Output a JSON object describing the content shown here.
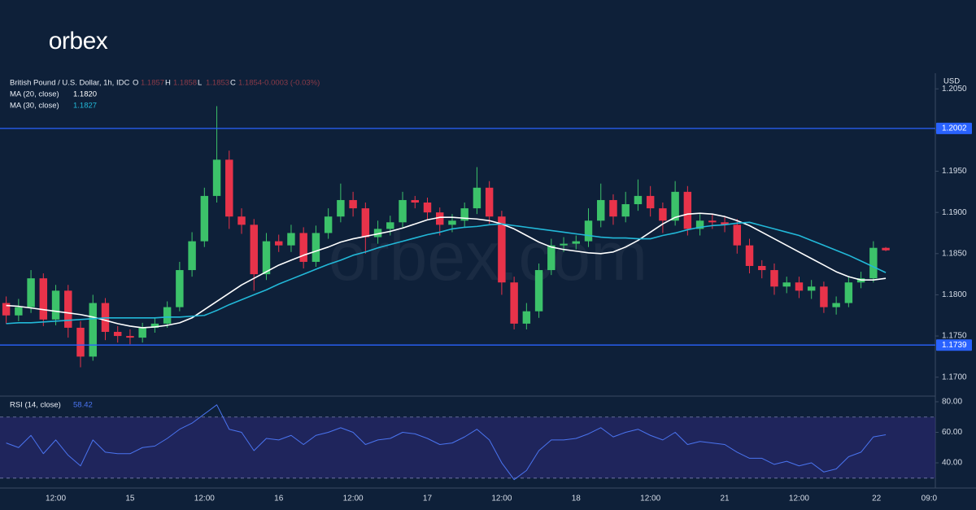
{
  "branding": {
    "logo": "orbex",
    "watermark": "orbex.com"
  },
  "header": {
    "symbol": "British Pound / U.S. Dollar, 1h, IDC",
    "o_key": "O",
    "o": "1.1857",
    "h_key": "H",
    "h": "1.1858",
    "l_key": "L",
    "l": "1.1853",
    "c_key": "C",
    "c": "1.1854",
    "change": "-0.0003 (-0.03%)",
    "ma20_value": "1.1820",
    "ma30_value": "1.1827",
    "rsi_value": "58.42",
    "currency": "USD"
  },
  "chart_data": [
    {
      "type": "candlestick",
      "up_color": "#3cc26a",
      "down_color": "#e8334a",
      "xlim": [
        -0.5,
        75
      ],
      "ylim": [
        1.1677,
        1.2069
      ],
      "yticks": [
        {
          "value": 1.17,
          "label": "1.1700"
        },
        {
          "value": 1.175,
          "label": "1.1750"
        },
        {
          "value": 1.18,
          "label": "1.1800"
        },
        {
          "value": 1.185,
          "label": "1.1850"
        },
        {
          "value": 1.19,
          "label": "1.1900"
        },
        {
          "value": 1.195,
          "label": "1.1950"
        },
        {
          "value": 1.2,
          "label": "1.2000"
        },
        {
          "value": 1.205,
          "label": "1.2050"
        }
      ],
      "grid": false,
      "levels": [
        {
          "value": 1.2002,
          "color": "#2962ff"
        },
        {
          "value": 1.1739,
          "color": "#2962ff"
        }
      ],
      "open": [
        1.179,
        1.1775,
        1.1785,
        1.182,
        1.177,
        1.1805,
        1.176,
        1.1725,
        1.179,
        1.1755,
        1.175,
        1.1748,
        1.176,
        1.1765,
        1.1785,
        1.183,
        1.1865,
        1.192,
        1.1964,
        1.1895,
        1.1885,
        1.1825,
        1.1865,
        1.186,
        1.1875,
        1.184,
        1.1875,
        1.1895,
        1.1915,
        1.1905,
        1.187,
        1.188,
        1.1888,
        1.1915,
        1.1912,
        1.19,
        1.1885,
        1.189,
        1.1905,
        1.193,
        1.1895,
        1.1815,
        1.1765,
        1.178,
        1.183,
        1.186,
        1.1862,
        1.1865,
        1.189,
        1.1915,
        1.1895,
        1.191,
        1.192,
        1.1905,
        1.189,
        1.1925,
        1.188,
        1.189,
        1.1888,
        1.1885,
        1.186,
        1.1835,
        1.183,
        1.181,
        1.1815,
        1.1805,
        1.181,
        1.1785,
        1.179,
        1.1815,
        1.182,
        1.1857
      ],
      "high": [
        1.1798,
        1.1795,
        1.183,
        1.1826,
        1.1812,
        1.1812,
        1.1768,
        1.18,
        1.1796,
        1.1762,
        1.1758,
        1.1766,
        1.1772,
        1.1792,
        1.184,
        1.1876,
        1.193,
        1.2029,
        1.1975,
        1.1905,
        1.1892,
        1.1875,
        1.1873,
        1.1885,
        1.1882,
        1.1884,
        1.1905,
        1.1935,
        1.1925,
        1.1912,
        1.189,
        1.1896,
        1.1925,
        1.192,
        1.1918,
        1.1906,
        1.1898,
        1.1912,
        1.1955,
        1.1938,
        1.1902,
        1.1822,
        1.179,
        1.1838,
        1.1868,
        1.187,
        1.1872,
        1.1905,
        1.1935,
        1.1922,
        1.1925,
        1.194,
        1.1932,
        1.1912,
        1.1938,
        1.1932,
        1.1898,
        1.1898,
        1.1895,
        1.1892,
        1.1868,
        1.1842,
        1.1838,
        1.1822,
        1.1822,
        1.1818,
        1.1816,
        1.1798,
        1.1822,
        1.1828,
        1.1865,
        1.1858
      ],
      "low": [
        1.1765,
        1.1768,
        1.1778,
        1.1762,
        1.1763,
        1.1748,
        1.1712,
        1.172,
        1.1745,
        1.1742,
        1.174,
        1.1742,
        1.1754,
        1.176,
        1.178,
        1.1822,
        1.1858,
        1.1912,
        1.188,
        1.1874,
        1.1805,
        1.1818,
        1.1852,
        1.1852,
        1.1832,
        1.1834,
        1.1868,
        1.1888,
        1.1895,
        1.185,
        1.1862,
        1.1872,
        1.1882,
        1.1905,
        1.1892,
        1.1872,
        1.1876,
        1.1882,
        1.1898,
        1.1886,
        1.18,
        1.1758,
        1.1758,
        1.1772,
        1.1824,
        1.1852,
        1.1855,
        1.1858,
        1.1882,
        1.1885,
        1.1888,
        1.1902,
        1.1895,
        1.1875,
        1.1884,
        1.1872,
        1.1872,
        1.188,
        1.1876,
        1.185,
        1.1826,
        1.182,
        1.18,
        1.1802,
        1.1796,
        1.1795,
        1.1778,
        1.1776,
        1.1785,
        1.1808,
        1.1815,
        1.1853
      ],
      "close": [
        1.1775,
        1.1785,
        1.182,
        1.177,
        1.1805,
        1.176,
        1.1725,
        1.179,
        1.1755,
        1.175,
        1.1748,
        1.176,
        1.1765,
        1.1785,
        1.183,
        1.1865,
        1.192,
        1.1964,
        1.1895,
        1.1885,
        1.1825,
        1.1865,
        1.186,
        1.1875,
        1.184,
        1.1875,
        1.1895,
        1.1915,
        1.1905,
        1.187,
        1.188,
        1.1888,
        1.1915,
        1.1912,
        1.19,
        1.1885,
        1.189,
        1.1905,
        1.193,
        1.1895,
        1.1815,
        1.1765,
        1.178,
        1.183,
        1.186,
        1.1862,
        1.1865,
        1.189,
        1.1915,
        1.1895,
        1.191,
        1.192,
        1.1905,
        1.189,
        1.1925,
        1.188,
        1.189,
        1.1888,
        1.1885,
        1.186,
        1.1835,
        1.183,
        1.181,
        1.1815,
        1.1805,
        1.181,
        1.1785,
        1.179,
        1.1815,
        1.182,
        1.1857,
        1.1854
      ],
      "series": [
        {
          "name": "MA (20, close)",
          "color": "#ffffff",
          "values": [
            1.1787,
            1.1786,
            1.1784,
            1.1782,
            1.178,
            1.1778,
            1.1776,
            1.1773,
            1.1769,
            1.1765,
            1.1762,
            1.176,
            1.1761,
            1.1763,
            1.1766,
            1.1772,
            1.1782,
            1.1792,
            1.1802,
            1.1812,
            1.182,
            1.1828,
            1.1836,
            1.1842,
            1.1848,
            1.1853,
            1.1858,
            1.1864,
            1.1868,
            1.1871,
            1.1874,
            1.1877,
            1.1881,
            1.1886,
            1.1891,
            1.1894,
            1.1894,
            1.1893,
            1.1892,
            1.189,
            1.1886,
            1.188,
            1.1872,
            1.1864,
            1.1858,
            1.1855,
            1.1853,
            1.1851,
            1.185,
            1.1852,
            1.1858,
            1.1866,
            1.1876,
            1.1886,
            1.1894,
            1.1898,
            1.1899,
            1.1898,
            1.1895,
            1.189,
            1.1884,
            1.1876,
            1.1868,
            1.186,
            1.1852,
            1.1844,
            1.1836,
            1.1828,
            1.1822,
            1.1818,
            1.1818,
            1.182
          ]
        },
        {
          "name": "MA (30, close)",
          "color": "#22b8d8",
          "values": [
            1.1765,
            1.1766,
            1.1766,
            1.1767,
            1.1768,
            1.1769,
            1.177,
            1.1771,
            1.1772,
            1.1772,
            1.1772,
            1.1772,
            1.1772,
            1.1773,
            1.1773,
            1.1774,
            1.1775,
            1.1781,
            1.1788,
            1.1794,
            1.18,
            1.1806,
            1.1813,
            1.1819,
            1.1825,
            1.1831,
            1.1837,
            1.1842,
            1.1848,
            1.1852,
            1.1857,
            1.1861,
            1.1865,
            1.1869,
            1.1873,
            1.1876,
            1.188,
            1.1882,
            1.1883,
            1.1885,
            1.1886,
            1.1884,
            1.1882,
            1.188,
            1.1878,
            1.1876,
            1.1874,
            1.1872,
            1.187,
            1.1869,
            1.1869,
            1.1868,
            1.1868,
            1.1872,
            1.1875,
            1.1879,
            1.1882,
            1.1884,
            1.1885,
            1.1887,
            1.1888,
            1.1884,
            1.188,
            1.1876,
            1.1872,
            1.1866,
            1.186,
            1.1854,
            1.1848,
            1.1841,
            1.1834,
            1.1827
          ]
        }
      ]
    },
    {
      "type": "line",
      "xlim": [
        -0.5,
        75
      ],
      "xticks": [
        {
          "value": 4,
          "label": "12:00"
        },
        {
          "value": 10,
          "label": "15"
        },
        {
          "value": 16,
          "label": "12:00"
        },
        {
          "value": 22,
          "label": "16"
        },
        {
          "value": 28,
          "label": "12:00"
        },
        {
          "value": 34,
          "label": "17"
        },
        {
          "value": 40,
          "label": "12:00"
        },
        {
          "value": 46,
          "label": "18"
        },
        {
          "value": 52,
          "label": "12:00"
        },
        {
          "value": 58,
          "label": "21"
        },
        {
          "value": 64,
          "label": "12:00"
        },
        {
          "value": 70.25,
          "label": "22"
        },
        {
          "value": 74.5,
          "label": "09:0"
        }
      ],
      "ylim": [
        23.5,
        83.7
      ],
      "yticks": [
        {
          "value": 40,
          "label": "40.00"
        },
        {
          "value": 60,
          "label": "60.00"
        },
        {
          "value": 80,
          "label": "80.00"
        }
      ],
      "band": [
        30,
        70
      ],
      "band_color": "#2d2a7a",
      "series": [
        {
          "name": "RSI (14, close)",
          "color": "#4a74f0",
          "values": [
            53,
            50,
            58,
            46,
            55,
            45,
            38,
            55,
            47,
            46,
            46,
            50,
            51,
            56,
            62,
            66,
            72,
            78,
            62,
            60,
            48,
            56,
            55,
            58,
            52,
            58,
            60,
            63,
            60,
            52,
            55,
            56,
            60,
            59,
            56,
            52,
            53,
            57,
            62,
            55,
            40,
            29,
            35,
            48,
            55,
            55,
            56,
            59,
            63,
            57,
            60,
            62,
            58,
            55,
            60,
            52,
            54,
            53,
            52,
            47,
            43,
            43,
            39,
            41,
            38,
            40,
            34,
            36,
            44,
            47,
            57,
            58.42
          ]
        }
      ]
    }
  ]
}
